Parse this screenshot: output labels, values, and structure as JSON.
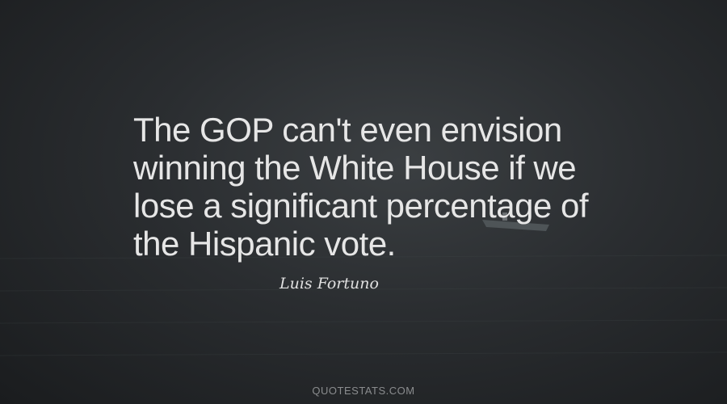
{
  "quote": {
    "lines": [
      "The GOP can't even envision",
      "winning the White House if we",
      "lose a significant percentage of",
      "the Hispanic vote."
    ],
    "author": "Luis Fortuno"
  },
  "footer": {
    "site": "QUOTESTATS.COM"
  }
}
